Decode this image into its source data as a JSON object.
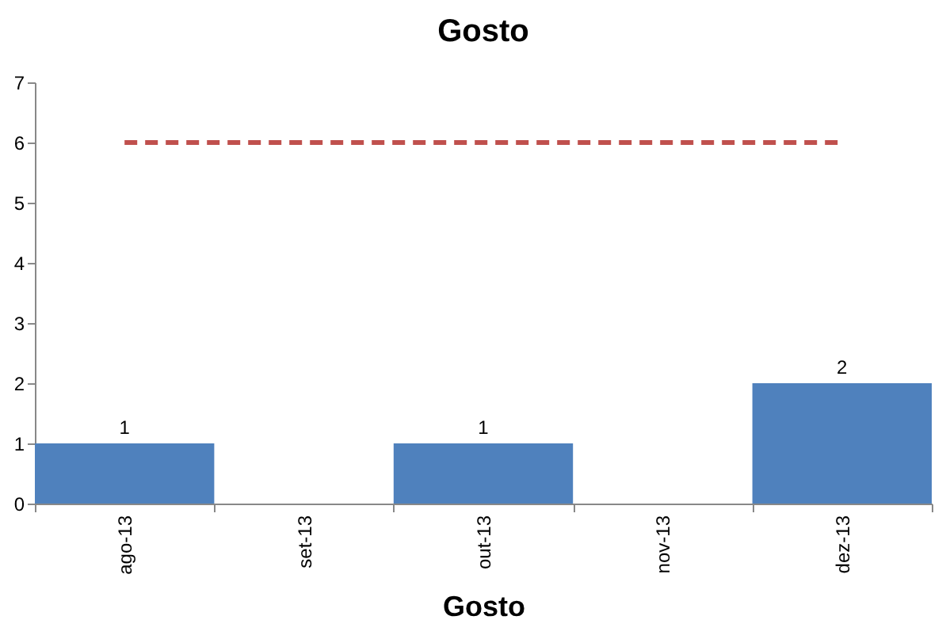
{
  "chart_data": {
    "type": "bar",
    "title": "Gosto",
    "xlabel": "Gosto",
    "categories": [
      "ago-13",
      "set-13",
      "out-13",
      "nov-13",
      "dez-13"
    ],
    "series": [
      {
        "color": "#4f81bd",
        "values": [
          1,
          null,
          1,
          null,
          2
        ],
        "value_labels": [
          "1",
          null,
          "1",
          null,
          "2"
        ]
      },
      {
        "type": "line",
        "color": "#c0504d",
        "values": [
          6,
          6,
          6,
          6,
          6
        ],
        "line_style": "dashed",
        "marker": "none"
      }
    ],
    "ylim": [
      0,
      7
    ],
    "yticks": [
      0,
      1,
      2,
      3,
      4,
      5,
      6,
      7
    ],
    "grid": false
  }
}
